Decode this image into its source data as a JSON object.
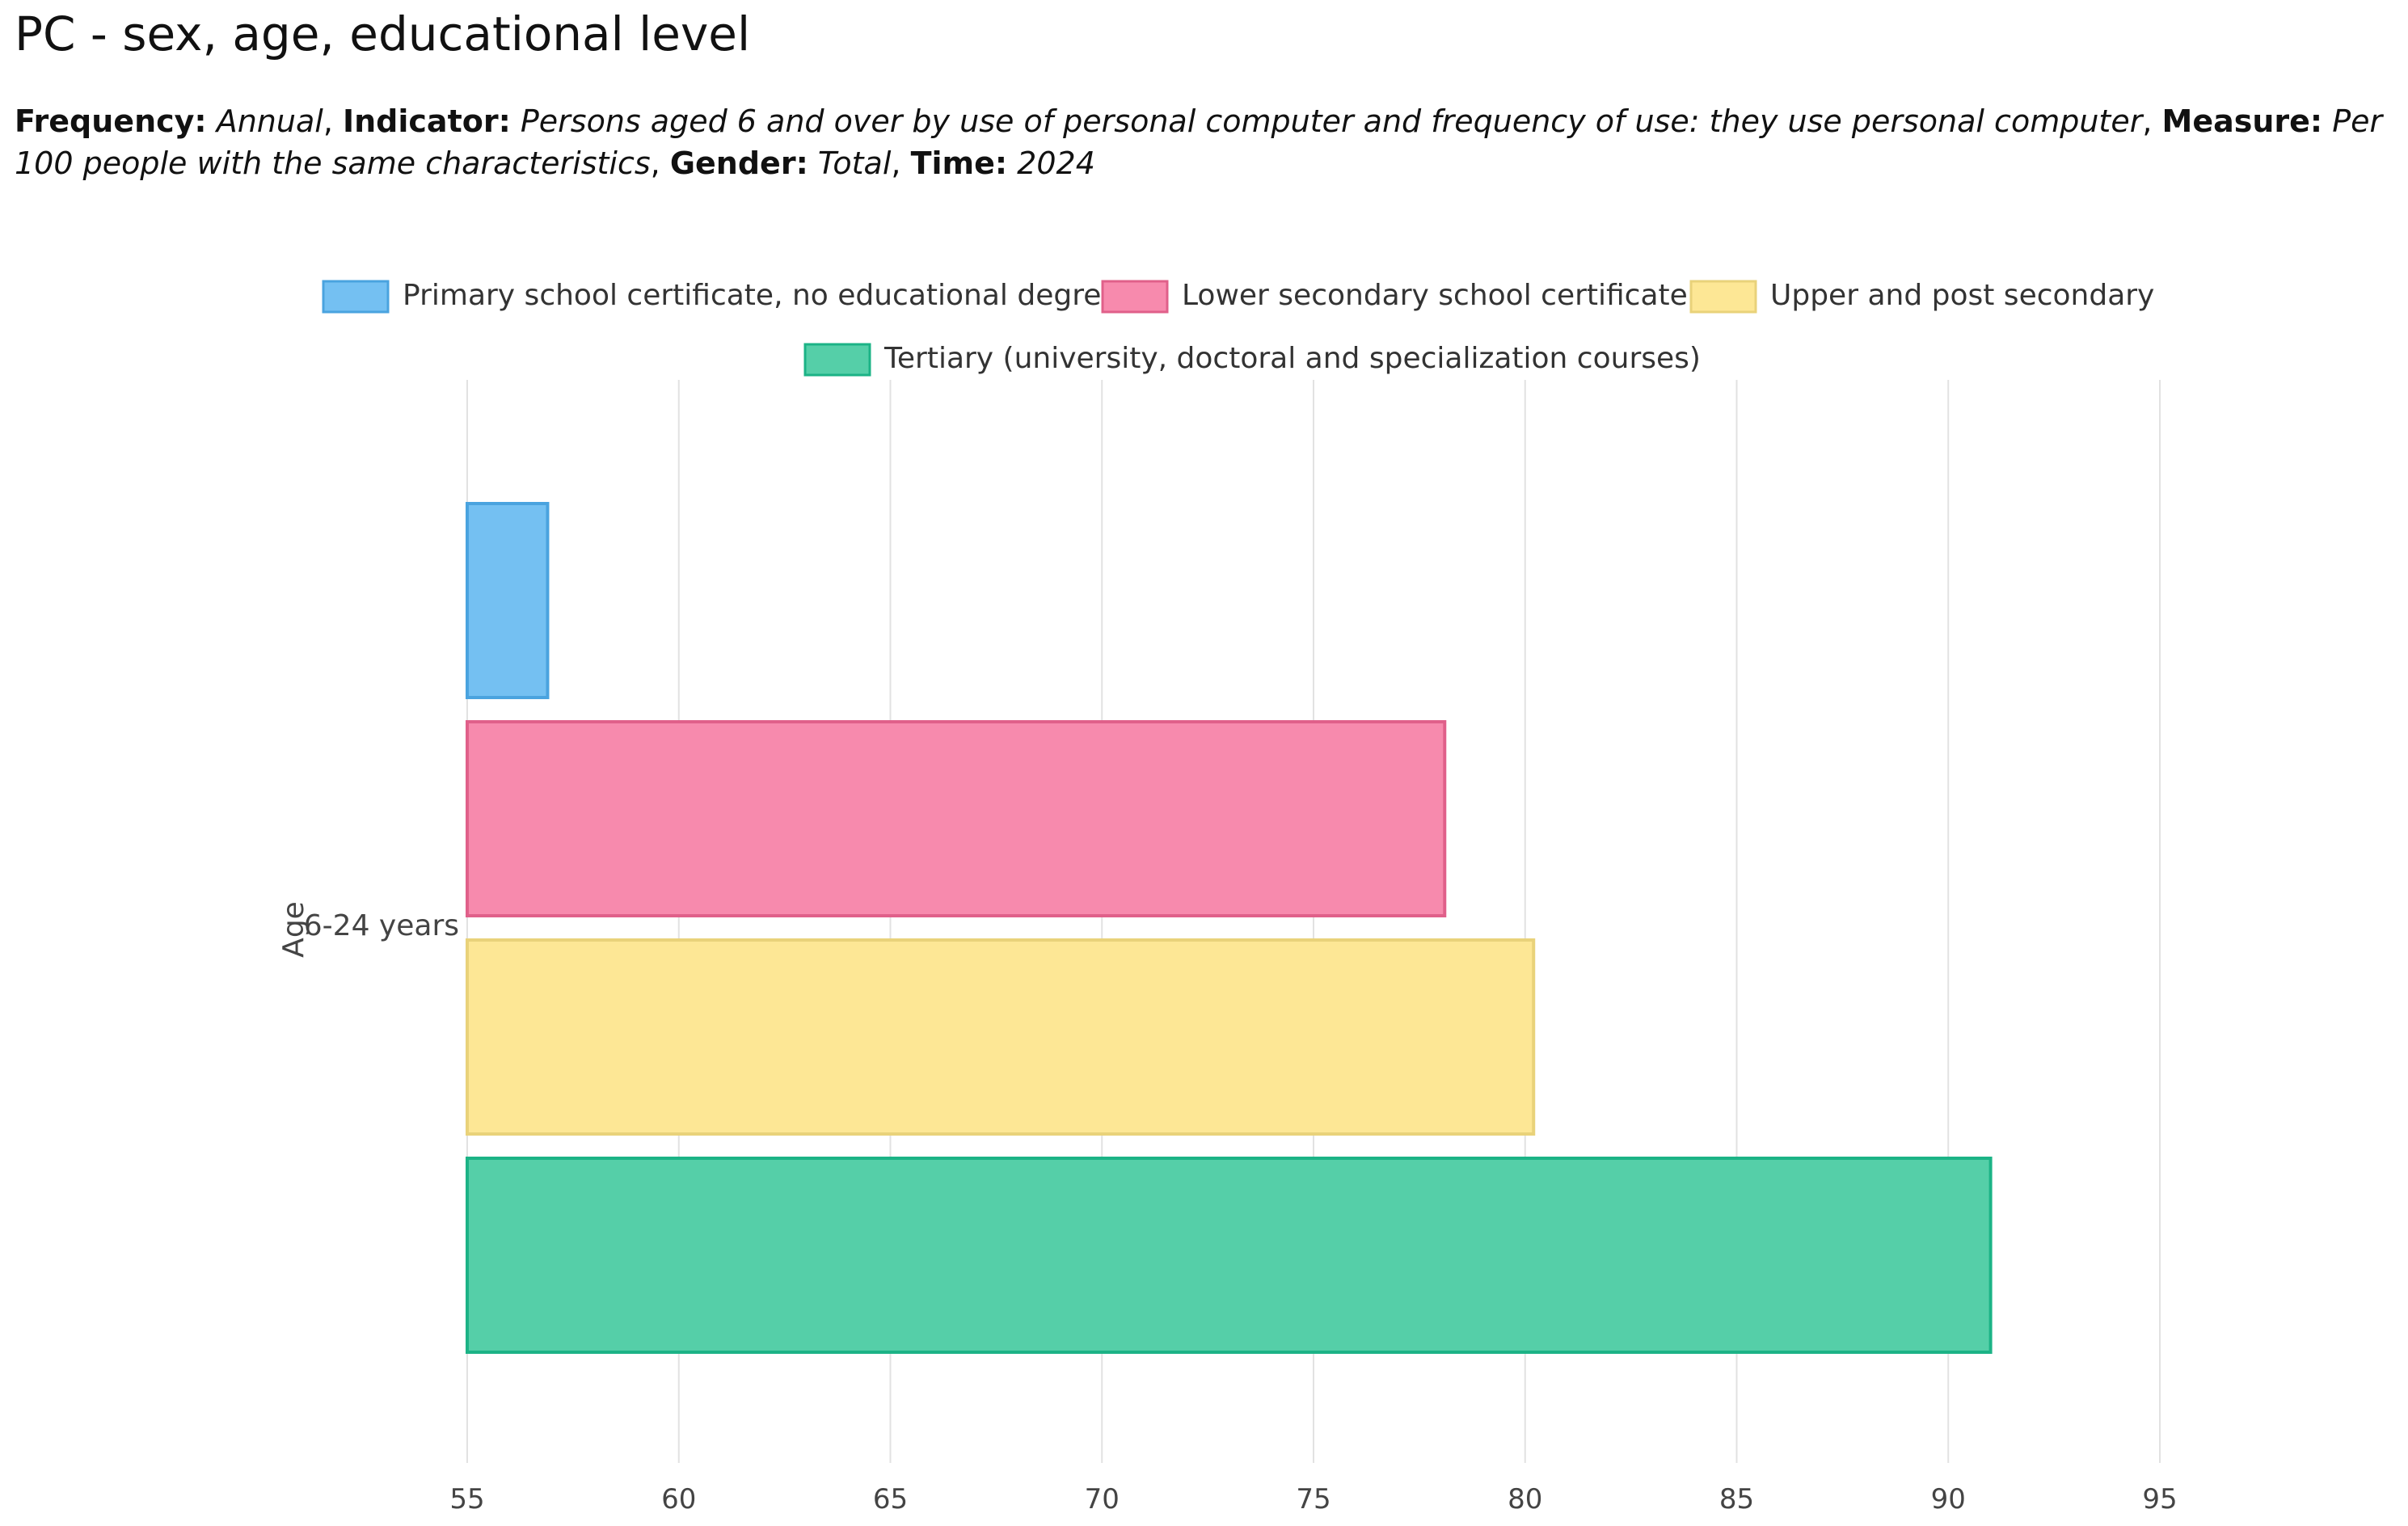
{
  "header": {
    "title": "PC - sex, age, educational level",
    "frequency_label": "Frequency:",
    "frequency_value": "Annual",
    "indicator_label": "Indicator:",
    "indicator_value": "Persons aged 6 and over by use of personal computer and frequency of use: they use personal computer",
    "measure_label": "Measure:",
    "measure_value": "Per 100 people with the same characteristics",
    "gender_label": "Gender:",
    "gender_value": "Total",
    "time_label": "Time:",
    "time_value": "2024",
    "sep": ", "
  },
  "chart_data": {
    "type": "bar",
    "orientation": "horizontal",
    "title": "PC - sex, age, educational level",
    "xlabel": "",
    "ylabel": "Age",
    "categories": [
      "6-24 years"
    ],
    "series": [
      {
        "name": "Primary school certificate, no educational degree",
        "values": [
          56.9
        ],
        "fill": "#74c0f2",
        "stroke": "#4aa3df"
      },
      {
        "name": "Lower secondary school certificate",
        "values": [
          78.1
        ],
        "fill": "#f78aad",
        "stroke": "#e0608a"
      },
      {
        "name": "Upper and post secondary",
        "values": [
          80.2
        ],
        "fill": "#fde795",
        "stroke": "#e9d27a"
      },
      {
        "name": "Tertiary (university, doctoral and specialization courses)",
        "values": [
          91.0
        ],
        "fill": "#55cfa8",
        "stroke": "#1cb386"
      }
    ],
    "xlim": [
      55,
      95
    ],
    "xticks": [
      55,
      60,
      65,
      70,
      75,
      80,
      85,
      90,
      95
    ],
    "grid": true,
    "legend_position": "top-center"
  }
}
